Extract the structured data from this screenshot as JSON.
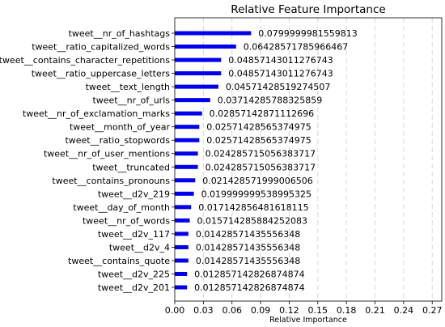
{
  "chart_data": {
    "type": "bar",
    "orientation": "horizontal",
    "title": "Relative Feature Importance",
    "xlabel": "Relative Importance",
    "ylabel": "",
    "xlim": [
      0,
      0.28
    ],
    "xticks": [
      "0.00",
      "0.03",
      "0.06",
      "0.09",
      "0.12",
      "0.15",
      "0.18",
      "0.21",
      "0.24",
      "0.27"
    ],
    "grid": "vertical dashed",
    "bar_color": "#0000ee",
    "categories": [
      "tweet__nr_of_hashtags",
      "tweet__ratio_capitalized_words",
      "tweet__contains_character_repetitions",
      "tweet__ratio_uppercase_letters",
      "tweet__text_length",
      "tweet__nr_of_urls",
      "tweet__nr_of_exclamation_marks",
      "tweet__month_of_year",
      "tweet__ratio_stopwords",
      "tweet__nr_of_user_mentions",
      "tweet__truncated",
      "tweet__contains_pronouns",
      "tweet__d2v_219",
      "tweet__day_of_month",
      "tweet__nr_of_words",
      "tweet__d2v_117",
      "tweet__d2v_4",
      "tweet__contains_quote",
      "tweet__d2v_225",
      "tweet__d2v_201"
    ],
    "values": [
      0.0799999981559813,
      0.06428571785966467,
      0.04857143011276743,
      0.04857143011276743,
      0.04571428519274507,
      0.03714285788325859,
      0.02857142871112696,
      0.02571428565374975,
      0.02571428565374975,
      0.024285715056383717,
      0.024285715056383717,
      0.021428571999006506,
      0.019999999538995325,
      0.017142856481618115,
      0.015714285884252083,
      0.01428571435556348,
      0.01428571435556348,
      0.01428571435556348,
      0.012857142826874874,
      0.012857142826874874
    ],
    "value_labels": [
      "0.0799999981559813",
      "0.06428571785966467",
      "0.04857143011276743",
      "0.04857143011276743",
      "0.04571428519274507",
      "0.03714285788325859",
      "0.02857142871112696",
      "0.02571428565374975",
      "0.02571428565374975",
      "0.024285715056383717",
      "0.024285715056383717",
      "0.021428571999006506",
      "0.019999999538995325",
      "0.017142856481618115",
      "0.015714285884252083",
      "0.01428571435556348",
      "0.01428571435556348",
      "0.01428571435556348",
      "0.012857142826874874",
      "0.012857142826874874"
    ]
  }
}
